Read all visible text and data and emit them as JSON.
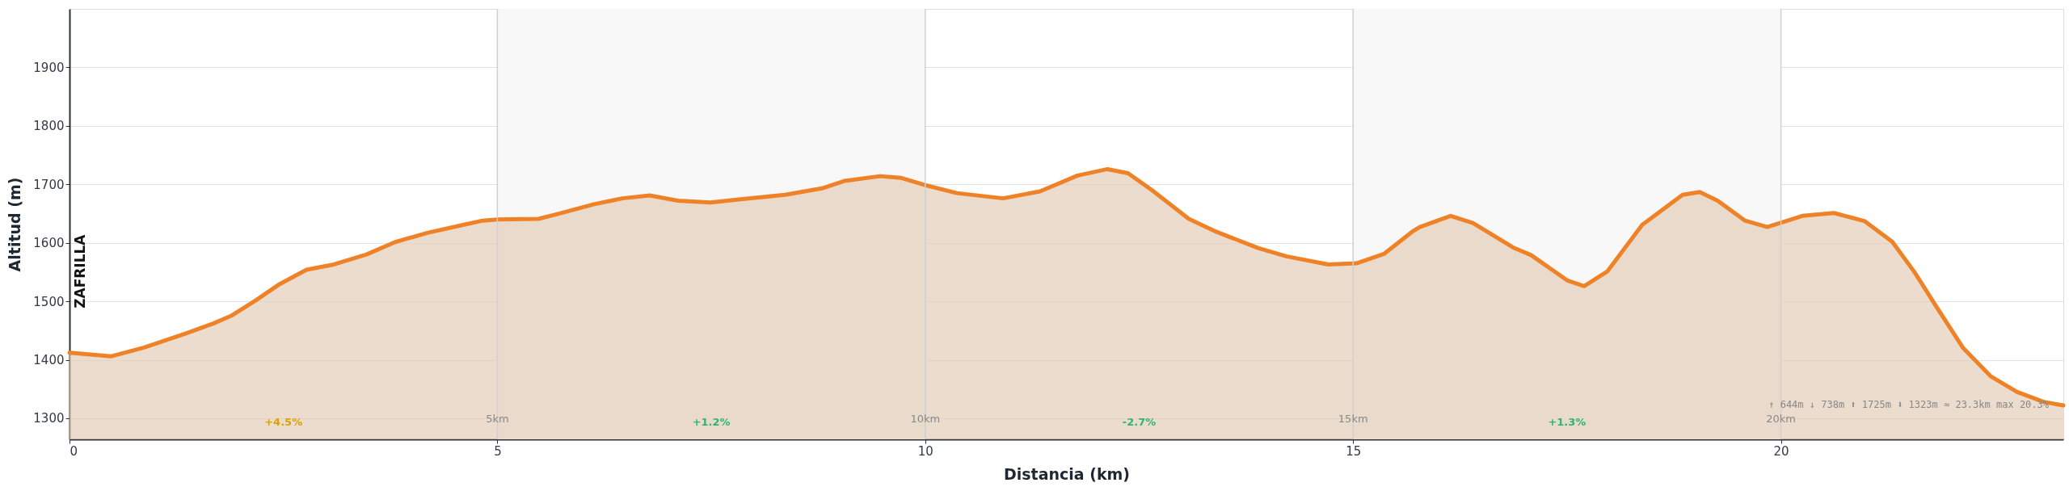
{
  "chart_data": {
    "type": "area",
    "xlabel": "Distancia (km)",
    "ylabel": "Altitud (m)",
    "x": [
      0,
      0.49,
      0.87,
      1.36,
      1.68,
      1.9,
      2.17,
      2.44,
      2.77,
      3.09,
      3.47,
      3.8,
      4.18,
      4.61,
      4.83,
      5.0,
      5.48,
      5.7,
      6.13,
      6.46,
      6.78,
      7.11,
      7.49,
      7.82,
      8.36,
      8.79,
      9.06,
      9.47,
      9.72,
      9.99,
      10.37,
      10.91,
      11.34,
      11.78,
      12.13,
      12.37,
      12.65,
      13.08,
      13.4,
      13.89,
      14.22,
      14.71,
      15.04,
      15.36,
      15.69,
      15.78,
      16.14,
      16.4,
      16.87,
      17.08,
      17.5,
      17.7,
      17.97,
      18.38,
      18.85,
      19.05,
      19.26,
      19.58,
      19.84,
      20.25,
      20.62,
      20.98,
      21.3,
      21.56,
      21.82,
      22.13,
      22.45,
      22.76,
      23.07,
      23.3
    ],
    "series": [
      {
        "color": "#ef8126",
        "values": [
          1412,
          1406,
          1421,
          1445,
          1462,
          1476,
          1501,
          1528,
          1554,
          1563,
          1580,
          1601,
          1617,
          1631,
          1638,
          1640,
          1641,
          1649,
          1666,
          1676,
          1681,
          1672,
          1669,
          1674,
          1682,
          1693,
          1706,
          1714,
          1711,
          1699,
          1685,
          1676,
          1688,
          1715,
          1726,
          1719,
          1690,
          1641,
          1619,
          1591,
          1577,
          1563,
          1565,
          1581,
          1619,
          1627,
          1646,
          1634,
          1592,
          1579,
          1536,
          1526,
          1551,
          1631,
          1682,
          1687,
          1672,
          1638,
          1627,
          1646,
          1651,
          1637,
          1602,
          1550,
          1490,
          1420,
          1372,
          1345,
          1328,
          1322
        ]
      }
    ],
    "xlim": [
      0,
      23.3
    ],
    "ylim": [
      1264,
      2000
    ],
    "xticks": [
      0,
      5,
      10,
      15,
      20
    ],
    "yticks": [
      1300,
      1400,
      1500,
      1600,
      1700,
      1800,
      1900
    ],
    "grid": "y",
    "bands": [
      {
        "axis": "x",
        "from": 5,
        "to": 10,
        "color": "#f8f8f8"
      },
      {
        "axis": "x",
        "from": 15,
        "to": 20,
        "color": "#f8f8f8"
      }
    ],
    "ref_lines": [
      {
        "axis": "x",
        "value": 5,
        "label": "5km"
      },
      {
        "axis": "x",
        "value": 10,
        "label": "10km"
      },
      {
        "axis": "x",
        "value": 15,
        "label": "15km"
      },
      {
        "axis": "x",
        "value": 20,
        "label": "20km"
      }
    ],
    "annotations": [
      "ZAFRILLA",
      "+4.5%",
      "+1.2%",
      "-2.7%",
      "+1.3%",
      "↑ 644m  ↓ 738m  ⬆ 1725m  ⬇ 1323m  ≈ 23.3km  max 20.3%"
    ]
  }
}
